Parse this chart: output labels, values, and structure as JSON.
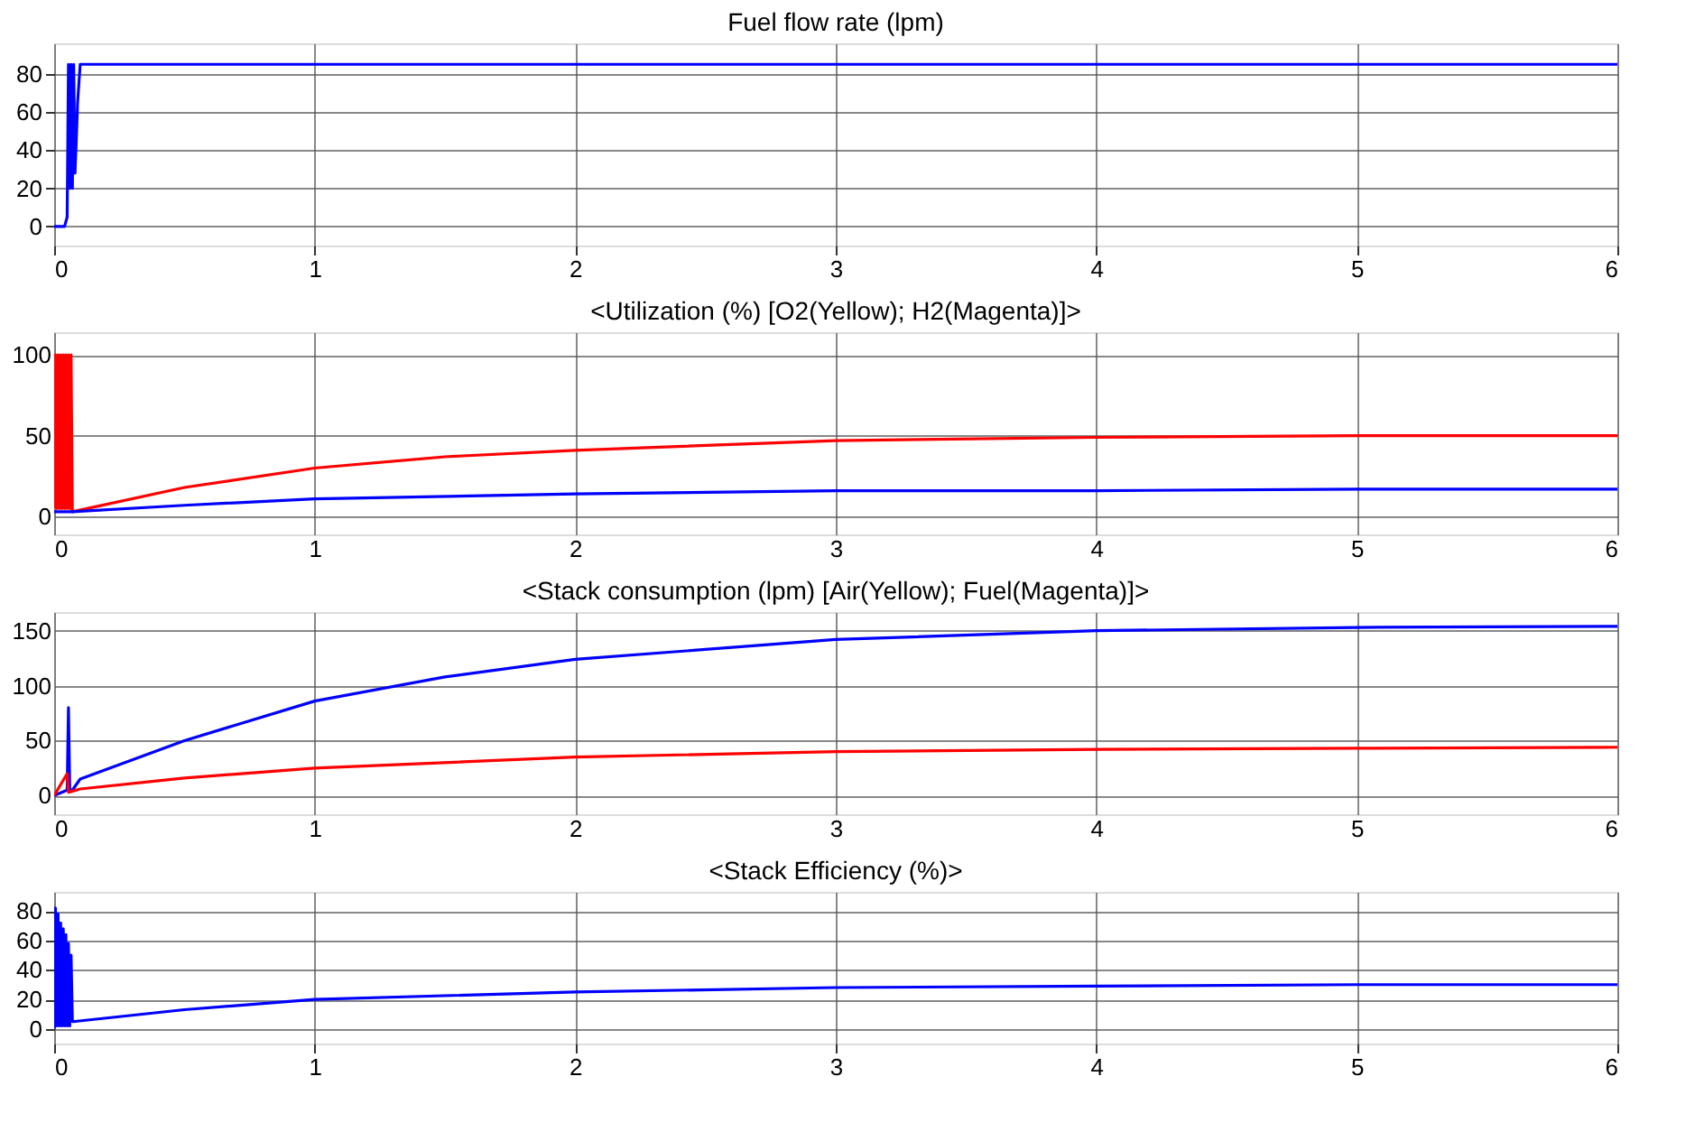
{
  "chart_data": [
    {
      "type": "line",
      "title": "Fuel flow rate (lpm)",
      "xlim": [
        0,
        6
      ],
      "xticks": [
        0,
        1,
        2,
        3,
        4,
        5,
        6
      ],
      "ylim": [
        -10,
        96
      ],
      "yticks": [
        0,
        20,
        40,
        60,
        80
      ],
      "grid": true,
      "series": [
        {
          "color": "#0000ff",
          "x": [
            0,
            0.04,
            0.05,
            0.055,
            0.06,
            0.065,
            0.07,
            0.075,
            0.08,
            0.085,
            0.09,
            0.1,
            6
          ],
          "values": [
            0,
            0,
            5,
            85,
            20,
            85,
            20,
            85,
            28,
            45,
            65,
            85,
            85
          ]
        }
      ]
    },
    {
      "type": "line",
      "title": "<Utilization (%) [O2(Yellow); H2(Magenta)]>",
      "xlim": [
        0,
        6
      ],
      "xticks": [
        0,
        1,
        2,
        3,
        4,
        5,
        6
      ],
      "ylim": [
        -11,
        114
      ],
      "yticks": [
        0,
        50,
        100
      ],
      "grid": true,
      "series": [
        {
          "color": "#ff0000",
          "x": [
            0,
            0.005,
            0.01,
            0.015,
            0.02,
            0.025,
            0.03,
            0.035,
            0.04,
            0.045,
            0.05,
            0.055,
            0.06,
            0.065,
            0.07,
            0.5,
            1,
            1.5,
            2,
            3,
            4,
            5,
            6
          ],
          "values": [
            5,
            100,
            5,
            100,
            5,
            100,
            5,
            100,
            5,
            100,
            5,
            100,
            5,
            100,
            3,
            18,
            30,
            37,
            41,
            47,
            49,
            50,
            50
          ]
        },
        {
          "color": "#0000ff",
          "x": [
            0,
            0.07,
            0.5,
            1,
            2,
            3,
            4,
            5,
            6
          ],
          "values": [
            3,
            3,
            7,
            11,
            14,
            16,
            16,
            17,
            17
          ]
        }
      ]
    },
    {
      "type": "line",
      "title": "<Stack consumption (lpm) [Air(Yellow); Fuel(Magenta)]>",
      "xlim": [
        0,
        6
      ],
      "xticks": [
        0,
        1,
        2,
        3,
        4,
        5,
        6
      ],
      "ylim": [
        -17,
        167
      ],
      "yticks": [
        0,
        50,
        100,
        150
      ],
      "grid": true,
      "series": [
        {
          "color": "#0000ff",
          "x": [
            0,
            0.05,
            0.055,
            0.06,
            0.07,
            0.1,
            0.5,
            1,
            1.5,
            2,
            3,
            4,
            5,
            6
          ],
          "values": [
            0,
            5,
            80,
            5,
            5,
            15,
            50,
            86,
            108,
            124,
            142,
            150,
            153,
            154
          ]
        },
        {
          "color": "#ff0000",
          "x": [
            0,
            0.05,
            0.055,
            0.1,
            0.5,
            1,
            2,
            3,
            4,
            5,
            6
          ],
          "values": [
            0,
            20,
            3,
            6,
            16,
            25,
            35,
            40,
            42,
            43,
            44
          ]
        }
      ]
    },
    {
      "type": "line",
      "title": "<Stack Efficiency (%)>",
      "xlim": [
        0,
        6
      ],
      "xticks": [
        0,
        1,
        2,
        3,
        4,
        5,
        6
      ],
      "ylim": [
        -10,
        93
      ],
      "yticks": [
        0,
        20,
        40,
        60,
        80
      ],
      "grid": true,
      "series": [
        {
          "color": "#0000ff",
          "x": [
            0,
            0.005,
            0.01,
            0.015,
            0.02,
            0.025,
            0.03,
            0.035,
            0.04,
            0.045,
            0.05,
            0.055,
            0.06,
            0.065,
            0.07,
            0.08,
            0.5,
            1,
            2,
            3,
            4,
            5,
            6
          ],
          "values": [
            0,
            82,
            2,
            78,
            2,
            72,
            2,
            68,
            2,
            64,
            2,
            58,
            2,
            50,
            5,
            5,
            13,
            20,
            25,
            28,
            29,
            30,
            30
          ]
        }
      ]
    }
  ]
}
